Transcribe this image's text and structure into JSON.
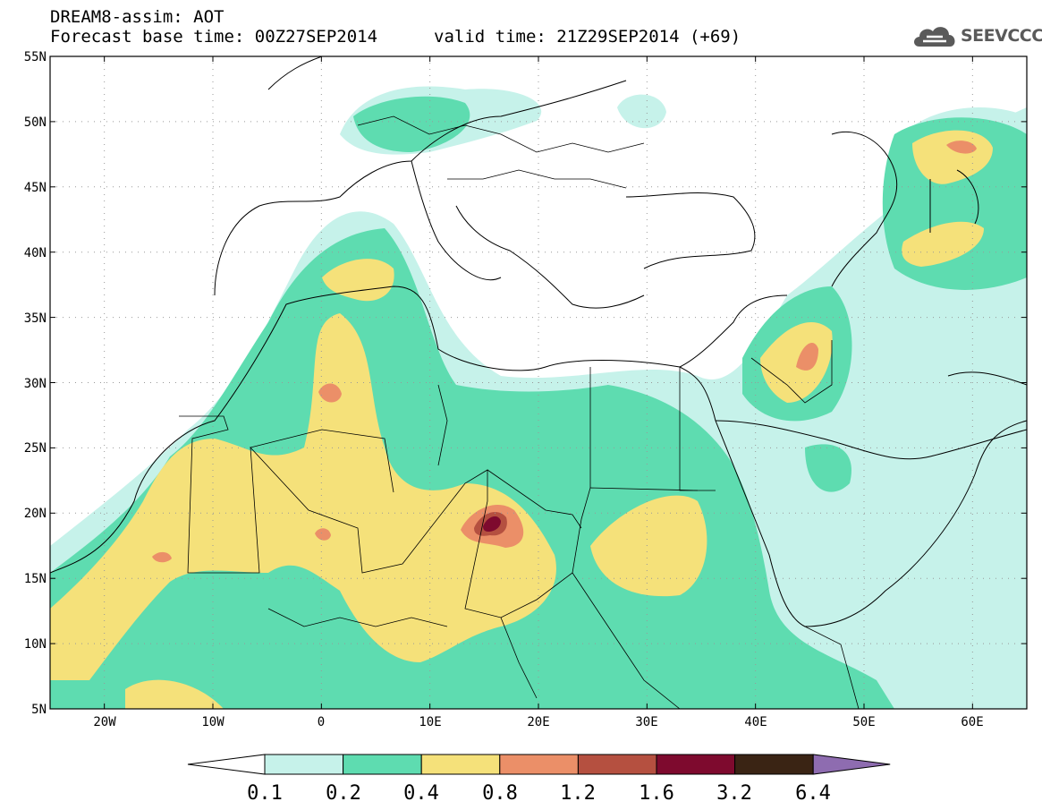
{
  "header": {
    "title": "DREAM8-assim: AOT",
    "base_time": "Forecast base time: 00Z27SEP2014",
    "valid_time": "valid time: 21Z29SEP2014 (+69)"
  },
  "logo": {
    "text": "SEEVCCC",
    "icon": "cloud-icon"
  },
  "map": {
    "lon_range": [
      -25,
      65
    ],
    "lat_range": [
      5,
      55
    ],
    "lat_labels": [
      "55N",
      "50N",
      "45N",
      "40N",
      "35N",
      "30N",
      "25N",
      "20N",
      "15N",
      "10N",
      "5N"
    ],
    "lon_labels": [
      "20W",
      "10W",
      "0",
      "10E",
      "20E",
      "30E",
      "40E",
      "50E",
      "60E"
    ],
    "gridlines": "dotted"
  },
  "colorbar": {
    "labels": [
      "0.1",
      "0.2",
      "0.4",
      "0.8",
      "1.2",
      "1.6",
      "3.2",
      "6.4"
    ],
    "colors": [
      "#ffffff",
      "#c6f2ea",
      "#5edcb0",
      "#f5e17a",
      "#eb8f68",
      "#b55040",
      "#7e0a2e",
      "#3a2414",
      "#8e6cb0"
    ]
  }
}
